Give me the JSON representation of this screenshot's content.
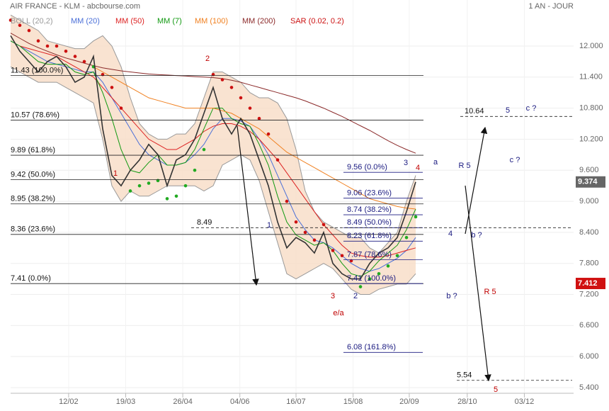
{
  "header": {
    "title": "AIR FRANCE - KLM - abcbourse.com",
    "period": "1 AN - JOUR"
  },
  "chart_data": {
    "type": "line",
    "x": [
      0,
      1,
      2,
      3,
      4,
      5,
      6,
      7,
      8,
      9,
      10,
      11,
      12,
      13,
      14,
      15,
      16,
      17,
      18,
      19,
      20,
      21,
      22,
      23,
      24,
      25,
      26,
      27,
      28,
      29,
      30,
      31,
      32,
      33,
      34,
      35,
      36,
      37,
      38,
      39,
      40,
      41,
      42,
      43,
      44
    ],
    "values": [
      12.2,
      11.9,
      11.7,
      11.5,
      11.7,
      11.8,
      11.6,
      11.3,
      11.4,
      11.8,
      10.4,
      9.5,
      9.3,
      9.6,
      9.8,
      10.1,
      9.9,
      9.3,
      9.8,
      9.9,
      10.2,
      10.7,
      11.2,
      10.6,
      10.3,
      10.6,
      10.3,
      9.8,
      9.3,
      8.6,
      8.1,
      8.3,
      8.2,
      8.0,
      8.4,
      7.8,
      7.6,
      7.5,
      7.5,
      7.8,
      8.0,
      8.1,
      8.3,
      8.8,
      9.374
    ],
    "color": "#333333",
    "series": [
      {
        "name": "BOLL (20,2)",
        "color": "#999999",
        "fill": "#f8dcc6",
        "upper": [
          12.6,
          12.5,
          12.4,
          12.3,
          12.1,
          12.05,
          12.0,
          11.95,
          11.95,
          12.1,
          12.2,
          12.0,
          11.6,
          11.0,
          10.5,
          10.3,
          10.2,
          10.2,
          10.3,
          10.3,
          10.5,
          11.0,
          11.5,
          11.5,
          11.4,
          11.3,
          11.1,
          11.0,
          11.0,
          10.9,
          10.6,
          10.0,
          9.2,
          8.8,
          8.6,
          8.5,
          8.4,
          8.3,
          8.3,
          8.1,
          8.0,
          8.2,
          8.4,
          9.0,
          9.5
        ],
        "lower": [
          11.6,
          11.5,
          11.4,
          11.3,
          11.3,
          11.3,
          11.2,
          11.1,
          11.0,
          10.9,
          10.2,
          9.3,
          9.0,
          9.2,
          9.1,
          9.1,
          9.2,
          9.3,
          9.3,
          9.3,
          9.3,
          9.2,
          9.3,
          9.7,
          9.8,
          9.9,
          9.8,
          9.4,
          8.8,
          8.2,
          7.6,
          7.5,
          7.6,
          7.7,
          7.8,
          7.7,
          7.5,
          7.3,
          7.2,
          7.2,
          7.3,
          7.35,
          7.4,
          7.4,
          7.6
        ]
      },
      {
        "name": "MM (20)",
        "color": "#4a6fd8",
        "values": [
          12.1,
          12.0,
          11.9,
          11.8,
          11.7,
          11.65,
          11.6,
          11.55,
          11.5,
          11.5,
          11.3,
          11.0,
          10.7,
          10.4,
          10.1,
          9.9,
          9.8,
          9.7,
          9.7,
          9.75,
          9.9,
          10.1,
          10.4,
          10.6,
          10.6,
          10.55,
          10.45,
          10.2,
          9.9,
          9.5,
          9.1,
          8.7,
          8.45,
          8.25,
          8.2,
          8.1,
          7.95,
          7.8,
          7.7,
          7.65,
          7.7,
          7.8,
          7.9,
          8.05,
          8.3
        ]
      },
      {
        "name": "MM (50)",
        "color": "#dd2222",
        "values": [
          null,
          12.0,
          11.95,
          11.9,
          11.85,
          11.8,
          11.7,
          11.6,
          11.5,
          11.4,
          11.2,
          11.0,
          10.8,
          10.6,
          10.4,
          10.2,
          10.1,
          10.0,
          10.0,
          10.1,
          10.2,
          10.35,
          10.45,
          10.5,
          10.5,
          10.45,
          10.35,
          10.2,
          10.0,
          9.8,
          9.55,
          9.3,
          9.05,
          8.8,
          8.55,
          8.35,
          8.15,
          8.0,
          7.95,
          7.92,
          7.92,
          7.95,
          8.0,
          8.05,
          8.1
        ]
      },
      {
        "name": "MM (7)",
        "color": "#119911",
        "values": [
          12.1,
          12.0,
          11.85,
          11.7,
          11.65,
          11.65,
          11.65,
          11.5,
          11.45,
          11.5,
          11.1,
          10.6,
          10.0,
          9.6,
          9.55,
          9.75,
          9.9,
          9.7,
          9.7,
          9.75,
          10.0,
          10.4,
          10.8,
          10.8,
          10.6,
          10.5,
          10.45,
          10.1,
          9.7,
          9.1,
          8.6,
          8.35,
          8.25,
          8.15,
          8.2,
          8.05,
          7.8,
          7.6,
          7.55,
          7.65,
          7.85,
          8.0,
          8.15,
          8.45,
          8.85
        ]
      },
      {
        "name": "MM (100)",
        "color": "#f08020",
        "values": [
          null,
          null,
          null,
          null,
          null,
          null,
          null,
          null,
          null,
          11.6,
          11.5,
          11.4,
          11.3,
          11.2,
          11.1,
          11.0,
          10.95,
          10.9,
          10.85,
          10.8,
          10.8,
          10.8,
          10.8,
          10.75,
          10.7,
          10.6,
          10.5,
          10.4,
          10.25,
          10.1,
          9.95,
          9.85,
          9.75,
          9.65,
          9.55,
          9.45,
          9.35,
          9.25,
          9.15,
          9.05,
          9.0,
          8.95,
          8.9,
          8.87,
          8.85
        ]
      },
      {
        "name": "MM (200)",
        "color": "#8b2a2a",
        "values": [
          12.25,
          12.15,
          12.05,
          11.97,
          11.9,
          11.83,
          11.77,
          11.72,
          11.67,
          11.62,
          11.58,
          11.55,
          11.52,
          11.5,
          11.48,
          11.46,
          11.45,
          11.44,
          11.43,
          11.42,
          11.41,
          11.4,
          11.39,
          11.37,
          11.34,
          11.3,
          11.25,
          11.2,
          11.15,
          11.1,
          11.05,
          11.0,
          10.94,
          10.87,
          10.8,
          10.72,
          10.64,
          10.55,
          10.46,
          10.37,
          10.27,
          10.17,
          10.08,
          10.0,
          9.93
        ]
      },
      {
        "name": "SAR (0.02, 0.2)",
        "color": "#cc1111",
        "color_below": "#22aa22",
        "style": "dots",
        "values": [
          12.5,
          12.4,
          12.3,
          12.1,
          12.0,
          12.0,
          11.9,
          11.8,
          11.7,
          11.6,
          11.45,
          11.2,
          10.8,
          9.2,
          9.3,
          9.35,
          9.4,
          9.05,
          9.1,
          9.3,
          9.6,
          10.0,
          11.45,
          11.35,
          11.2,
          11.0,
          10.8,
          10.6,
          10.3,
          9.8,
          9.0,
          8.6,
          8.4,
          8.25,
          8.55,
          8.05,
          7.95,
          7.85,
          7.35,
          7.5,
          7.6,
          7.75,
          7.95,
          8.3,
          8.7
        ]
      }
    ],
    "fib_left": [
      {
        "value": 11.43,
        "label": "11.43  (100.0%)"
      },
      {
        "value": 10.57,
        "label": "10.57  (78.6%)"
      },
      {
        "value": 9.89,
        "label": "9.89  (61.8%)"
      },
      {
        "value": 9.42,
        "label": "9.42  (50.0%)"
      },
      {
        "value": 8.95,
        "label": "8.95  (38.2%)"
      },
      {
        "value": 8.36,
        "label": "8.36  (23.6%)"
      },
      {
        "value": 7.41,
        "label": "7.41  (0.0%)"
      }
    ],
    "fib_right": [
      {
        "value": 9.56,
        "label": "9.56  (0.0%)"
      },
      {
        "value": 9.06,
        "label": "9.06  (23.6%)"
      },
      {
        "value": 8.74,
        "label": "8.74  (38.2%)"
      },
      {
        "value": 8.49,
        "label": "8.49  (50.0%)"
      },
      {
        "value": 8.23,
        "label": "8.23  (61.8%)"
      },
      {
        "value": 7.87,
        "label": "7.87  (78.6%)"
      },
      {
        "value": 7.41,
        "label": "7.41  (100.0%)"
      },
      {
        "value": 6.08,
        "label": "6.08  (161.8%)"
      }
    ],
    "targets": [
      8.49,
      10.64,
      5.54
    ],
    "markers": [
      {
        "value": 9.374,
        "color": "#666666"
      },
      {
        "value": 7.412,
        "color": "#d01010"
      }
    ],
    "annotations": [
      {
        "text": "1",
        "color": "#c00000"
      },
      {
        "text": "2",
        "color": "#c00000"
      },
      {
        "text": "1",
        "color": "#1a1a80"
      },
      {
        "text": "3",
        "color": "#c00000"
      },
      {
        "text": "2",
        "color": "#1a1a80"
      },
      {
        "text": "e/a",
        "color": "#c00000"
      },
      {
        "text": "3",
        "color": "#1a1a80"
      },
      {
        "text": "4",
        "color": "#c00000"
      },
      {
        "text": "a",
        "color": "#1a1a80"
      },
      {
        "text": "R 5",
        "color": "#1a1a80"
      },
      {
        "text": "4",
        "color": "#1a1a80"
      },
      {
        "text": "b ?",
        "color": "#1a1a80"
      },
      {
        "text": "5",
        "color": "#1a1a80"
      },
      {
        "text": "c ?",
        "color": "#1a1a80"
      },
      {
        "text": "c ?",
        "color": "#1a1a80"
      },
      {
        "text": "b ?",
        "color": "#1a1a80"
      },
      {
        "text": "R 5",
        "color": "#c00000"
      },
      {
        "text": "5",
        "color": "#c00000"
      }
    ],
    "xlim": [
      0,
      61.15
    ],
    "xticks": [
      {
        "value": 6.3,
        "label": "12/02"
      },
      {
        "value": 12.5,
        "label": "19/03"
      },
      {
        "value": 18.7,
        "label": "26/04"
      },
      {
        "value": 24.9,
        "label": "04/06"
      },
      {
        "value": 31.0,
        "label": "16/07"
      },
      {
        "value": 37.2,
        "label": "15/08"
      },
      {
        "value": 43.3,
        "label": "20/09"
      },
      {
        "value": 49.6,
        "label": "28/10"
      },
      {
        "value": 55.8,
        "label": "03/12"
      }
    ],
    "ylim": [
      5.29,
      12.89
    ],
    "yticks": [
      {
        "value": 5.4,
        "label": "5.400"
      },
      {
        "value": 6.0,
        "label": "6.000"
      },
      {
        "value": 6.6,
        "label": "6.600"
      },
      {
        "value": 7.2,
        "label": "7.200"
      },
      {
        "value": 7.8,
        "label": "7.800"
      },
      {
        "value": 8.4,
        "label": "8.400"
      },
      {
        "value": 9.0,
        "label": "9.000"
      },
      {
        "value": 9.6,
        "label": "9.600"
      },
      {
        "value": 10.2,
        "label": "10.200"
      },
      {
        "value": 10.8,
        "label": "10.800"
      },
      {
        "value": 11.4,
        "label": "11.400"
      },
      {
        "value": 12.0,
        "label": "12.000"
      }
    ],
    "grid": true
  }
}
